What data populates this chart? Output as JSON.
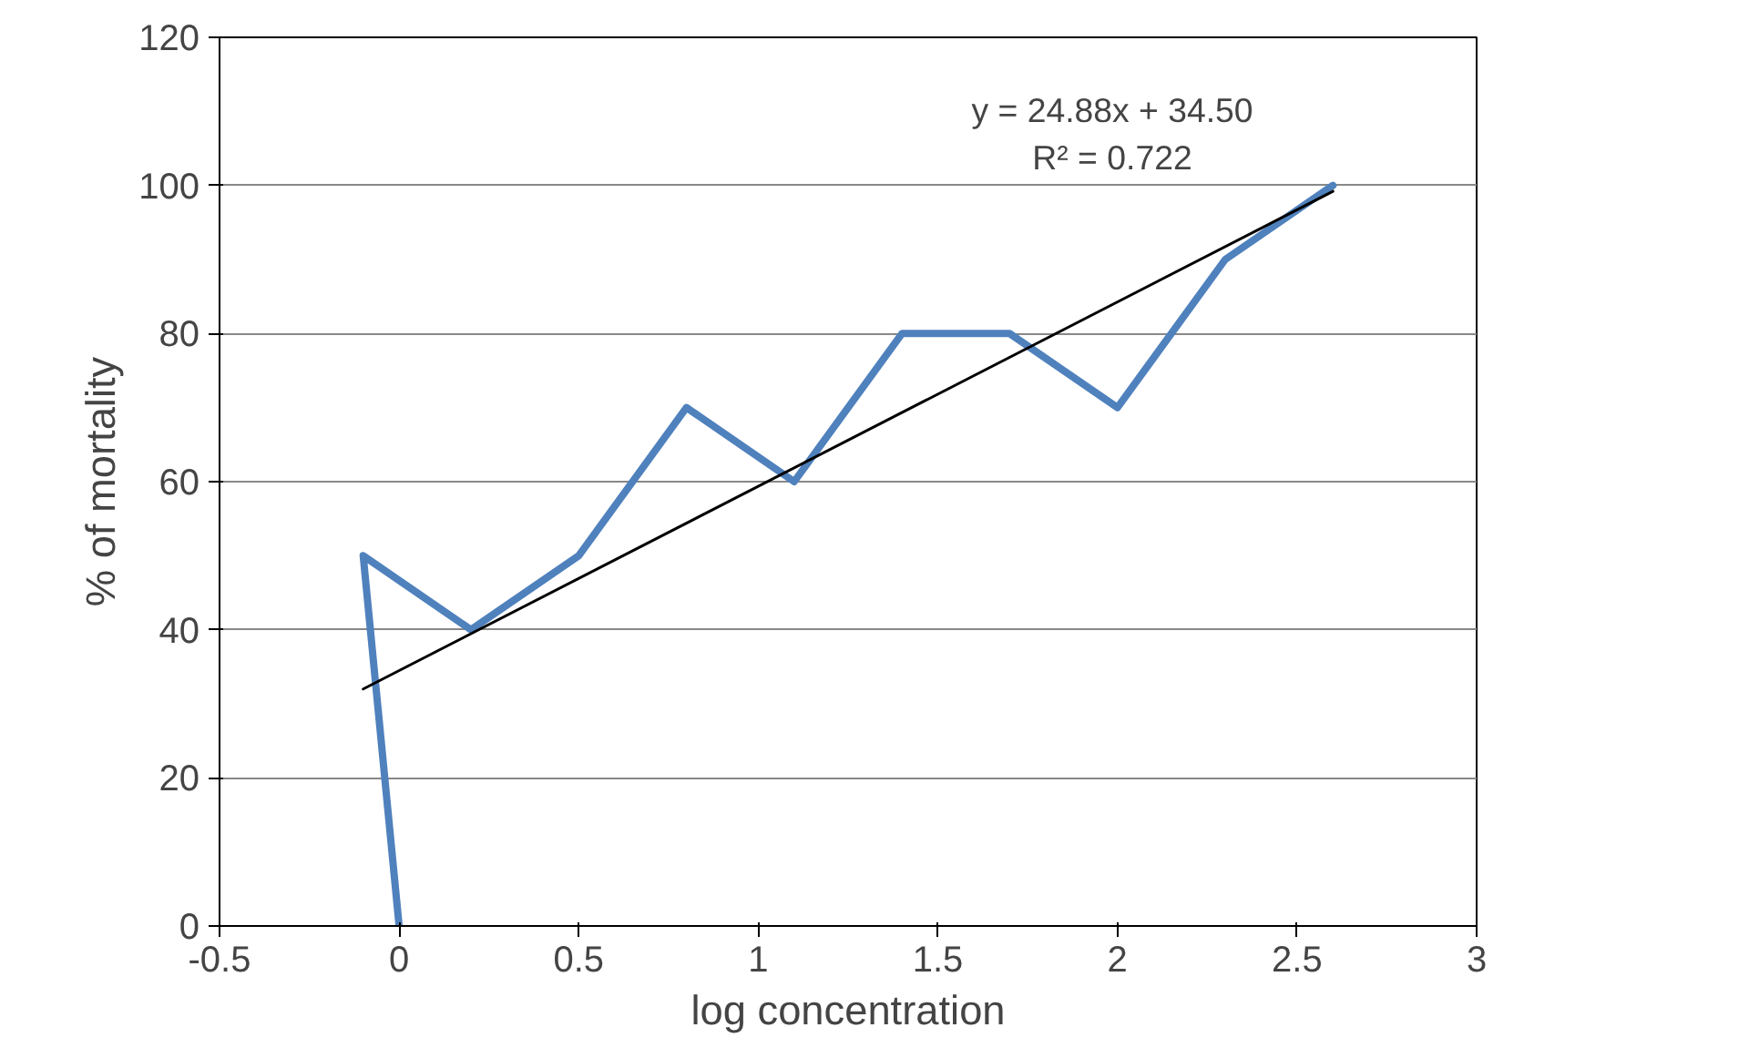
{
  "chart_data": {
    "type": "line",
    "xlabel": "log concentration",
    "ylabel": "% of mortality",
    "xlim": [
      -0.5,
      3
    ],
    "ylim": [
      0,
      120
    ],
    "xticks": [
      -0.5,
      0,
      0.5,
      1,
      1.5,
      2,
      2.5,
      3
    ],
    "yticks": [
      0,
      20,
      40,
      60,
      80,
      100,
      120
    ],
    "grid": "y",
    "marker": "none",
    "line_style": "solid",
    "series": [
      {
        "color": "#4f81bd",
        "x": [
          0,
          -0.1,
          0.2,
          0.5,
          0.8,
          1.1,
          1.4,
          1.7,
          2.0,
          2.3,
          2.6
        ],
        "values": [
          0,
          50,
          40,
          50,
          70,
          60,
          80,
          80,
          70,
          90,
          100
        ]
      },
      {
        "color": "#000000",
        "x": [
          -0.1,
          2.6
        ],
        "values": [
          32.0,
          99.2
        ]
      }
    ],
    "annotations": [
      "y = 24.88x + 34.50",
      "R² = 0.722"
    ]
  }
}
